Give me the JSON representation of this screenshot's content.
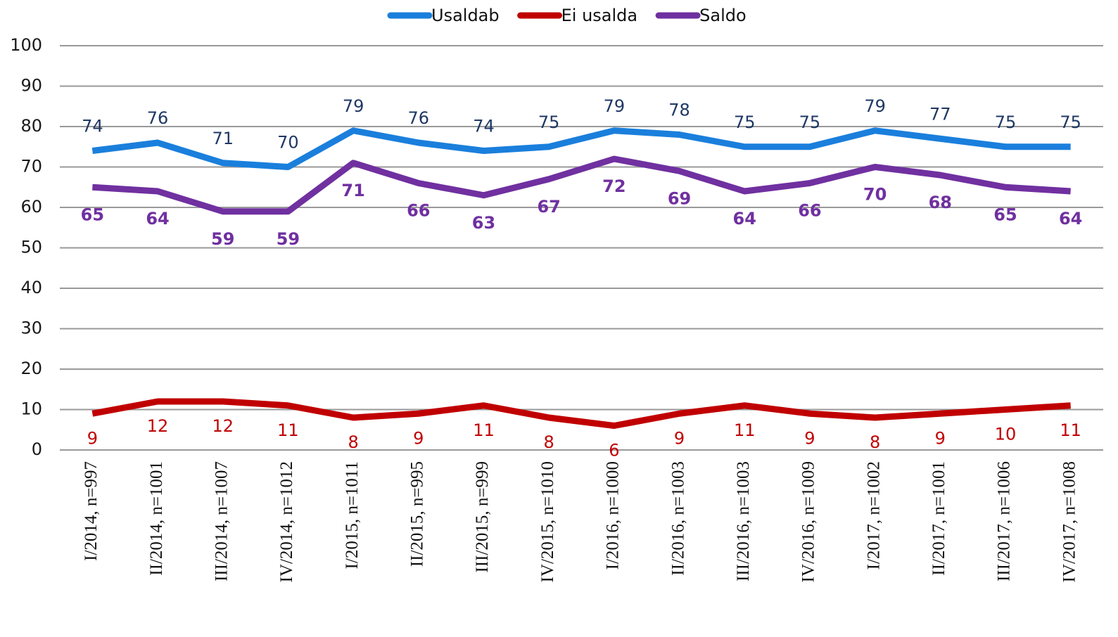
{
  "chart_data": {
    "type": "line",
    "categories": [
      "I/2014, n=997",
      "II/2014, n=1001",
      "III/2014, n=1007",
      "IV/2014, n=1012",
      "I/2015, n=1011",
      "II/2015, n=995",
      "III/2015, n=999",
      "IV/2015, n=1010",
      "I/2016, n=1000",
      "II/2016, n=1003",
      "III/2016, n=1003",
      "IV/2016, n=1009",
      "I/2017, n=1002",
      "II/2017, n=1001",
      "III/2017, n=1006",
      "IV/2017, n=1008"
    ],
    "series": [
      {
        "name": "Usaldab",
        "color": "#1a7fdc",
        "values": [
          74,
          76,
          71,
          70,
          79,
          76,
          74,
          75,
          79,
          78,
          75,
          75,
          79,
          77,
          75,
          75
        ]
      },
      {
        "name": "Ei usalda",
        "color": "#c00000",
        "values": [
          9,
          12,
          12,
          11,
          8,
          9,
          11,
          8,
          6,
          9,
          11,
          9,
          8,
          9,
          10,
          11
        ]
      },
      {
        "name": "Saldo",
        "color": "#7030a0",
        "values": [
          65,
          64,
          59,
          59,
          71,
          66,
          63,
          67,
          72,
          69,
          64,
          66,
          70,
          68,
          65,
          64
        ]
      }
    ],
    "ylim": [
      0,
      100
    ],
    "yticks": [
      0,
      10,
      20,
      30,
      40,
      50,
      60,
      70,
      80,
      90,
      100
    ],
    "grid": true,
    "legend": "top"
  }
}
